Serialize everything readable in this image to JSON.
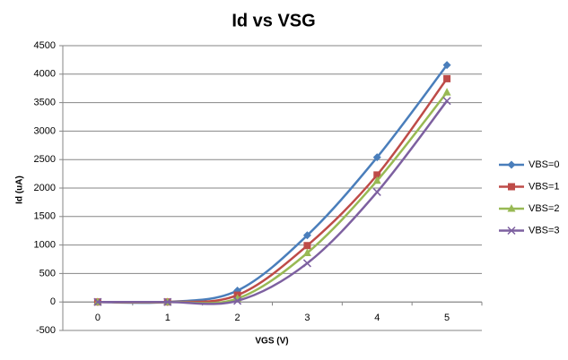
{
  "chart_data": {
    "type": "line",
    "title": "Id vs VSG",
    "x_label": "VGS (V)",
    "y_label": "Id (uA)",
    "categories": [
      "0",
      "1",
      "2",
      "3",
      "4",
      "5"
    ],
    "series": [
      {
        "name": "VBS=0",
        "color": "#4a7ebb",
        "marker": "diamond",
        "values": [
          0,
          0,
          200,
          1170,
          2540,
          4160
        ]
      },
      {
        "name": "VBS=1",
        "color": "#be4b48",
        "marker": "square",
        "values": [
          0,
          0,
          120,
          990,
          2230,
          3920
        ]
      },
      {
        "name": "VBS=2",
        "color": "#98b954",
        "marker": "triangle",
        "values": [
          0,
          0,
          60,
          860,
          2130,
          3680
        ]
      },
      {
        "name": "VBS=3",
        "color": "#7d60a0",
        "marker": "x",
        "values": [
          0,
          0,
          20,
          680,
          1930,
          3530
        ]
      }
    ],
    "ylim": [
      -500,
      4500
    ],
    "yticks": [
      -500,
      0,
      500,
      1000,
      1500,
      2000,
      2500,
      3000,
      3500,
      4000,
      4500
    ],
    "grid": true,
    "smooth": true,
    "legend": "right"
  }
}
